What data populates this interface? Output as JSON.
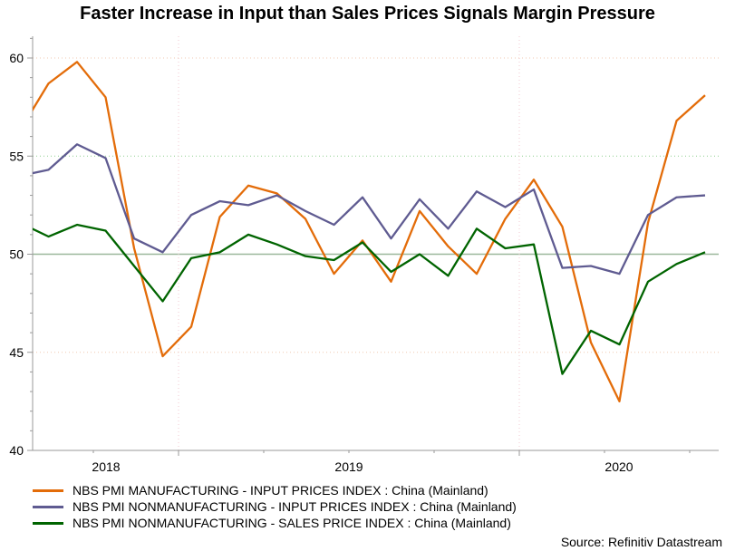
{
  "chart_data": {
    "type": "line",
    "title": "Faster Increase in Input than Sales Prices Signals Margin Pressure",
    "xlabel": "",
    "ylabel": "",
    "ylim": [
      40,
      61
    ],
    "yticks": [
      40,
      45,
      50,
      55,
      60
    ],
    "ytick_labels": [
      "40",
      "45",
      "50",
      "55",
      "60"
    ],
    "x_year_labels": [
      "2018",
      "2019",
      "2020"
    ],
    "x": [
      "2018-07",
      "2018-08",
      "2018-09",
      "2018-10",
      "2018-11",
      "2018-12",
      "2019-01",
      "2019-02",
      "2019-03",
      "2019-04",
      "2019-05",
      "2019-06",
      "2019-07",
      "2019-08",
      "2019-09",
      "2019-10",
      "2019-11",
      "2019-12",
      "2020-01",
      "2020-02",
      "2020-03",
      "2020-04",
      "2020-05",
      "2020-06",
      "2020-07"
    ],
    "reference_line": 50,
    "legend_position": "bottom",
    "series": [
      {
        "name": "NBS PMI MANUFACTURING - INPUT PRICES INDEX : China (Mainland)",
        "color": "#e36c09",
        "values": [
          56.3,
          58.7,
          59.8,
          58.0,
          50.3,
          44.8,
          46.3,
          51.9,
          53.5,
          53.1,
          51.8,
          49.0,
          50.7,
          48.6,
          52.2,
          50.4,
          49.0,
          51.8,
          53.8,
          51.4,
          45.5,
          42.5,
          51.6,
          56.8,
          58.1
        ]
      },
      {
        "name": "NBS PMI NONMANUFACTURING - INPUT PRICES INDEX : China (Mainland)",
        "color": "#5f5b91",
        "values": [
          54.0,
          54.3,
          55.6,
          54.9,
          50.8,
          50.1,
          52.0,
          52.7,
          52.5,
          53.0,
          52.2,
          51.5,
          52.9,
          50.8,
          52.8,
          51.3,
          53.2,
          52.4,
          53.3,
          49.3,
          49.4,
          49.0,
          52.0,
          52.9,
          53.0
        ]
      },
      {
        "name": "NBS PMI NONMANUFACTURING - SALES PRICE INDEX : China (Mainland)",
        "color": "#006400",
        "values": [
          51.6,
          50.9,
          51.5,
          51.2,
          49.4,
          47.6,
          49.8,
          50.1,
          51.0,
          50.5,
          49.9,
          49.7,
          50.6,
          49.1,
          50.0,
          48.9,
          51.3,
          50.3,
          50.5,
          43.9,
          46.1,
          45.4,
          48.6,
          49.5,
          50.1
        ]
      }
    ],
    "source": "Source: Refinitiv Datastream"
  }
}
